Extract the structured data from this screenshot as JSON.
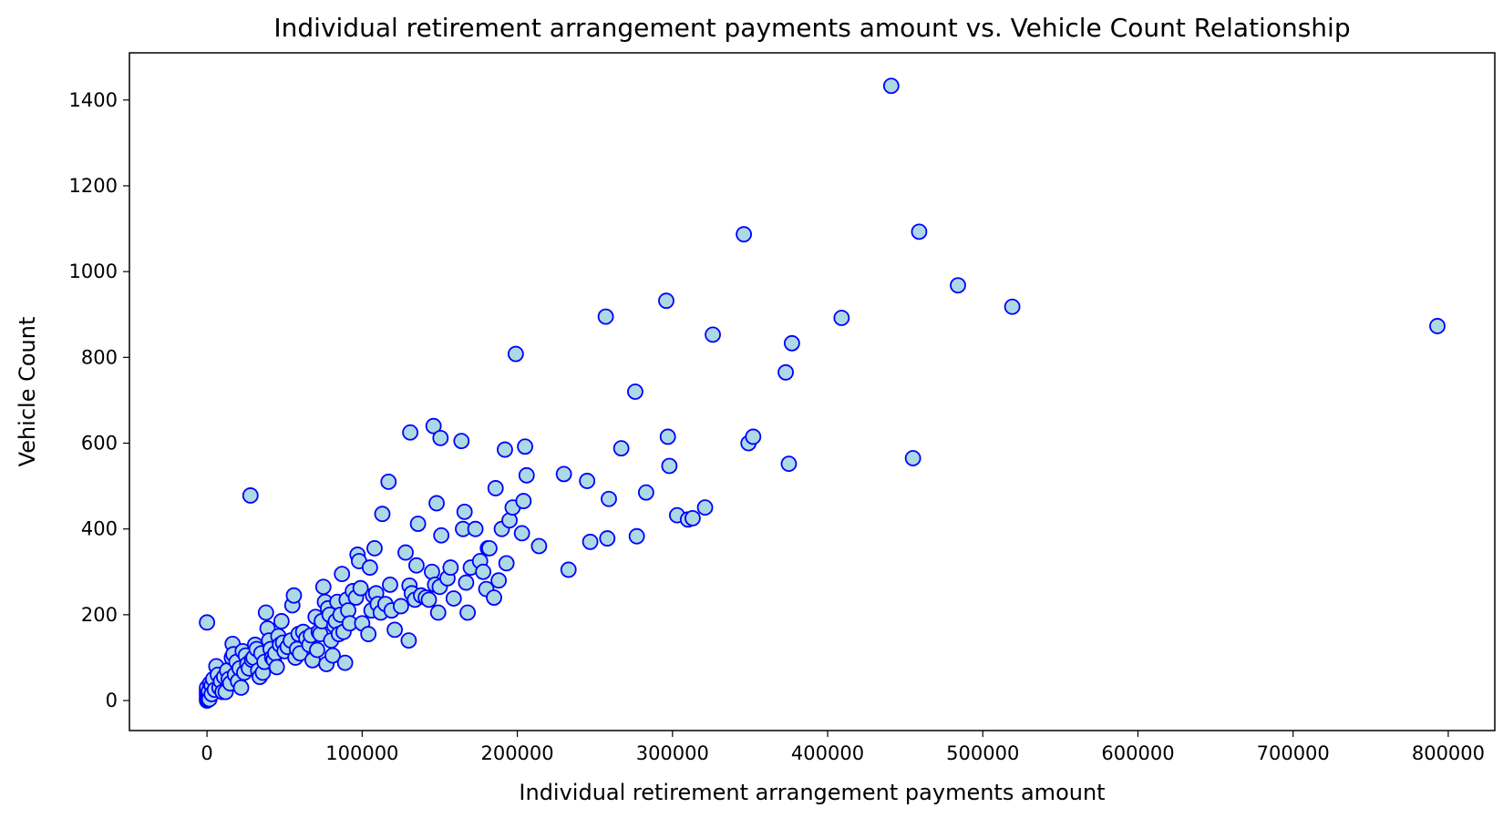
{
  "chart_data": {
    "type": "scatter",
    "title": "Individual retirement arrangement payments amount vs. Vehicle Count Relationship",
    "xlabel": "Individual retirement arrangement payments amount",
    "ylabel": "Vehicle Count",
    "xlim": [
      -50000,
      830000
    ],
    "ylim": [
      -70,
      1510
    ],
    "xticks": [
      0,
      100000,
      200000,
      300000,
      400000,
      500000,
      600000,
      700000,
      800000
    ],
    "yticks": [
      0,
      200,
      400,
      600,
      800,
      1000,
      1200,
      1400
    ],
    "grid": false,
    "legend": "none",
    "marker_fill": "#add8e6",
    "marker_edge": "#0000ff",
    "points": [
      [
        0,
        0
      ],
      [
        0,
        5
      ],
      [
        0,
        10
      ],
      [
        0,
        15
      ],
      [
        0,
        20
      ],
      [
        0,
        25
      ],
      [
        0,
        30
      ],
      [
        500,
        2
      ],
      [
        800,
        12
      ],
      [
        1000,
        8
      ],
      [
        1200,
        22
      ],
      [
        1500,
        3
      ],
      [
        0,
        182
      ],
      [
        2000,
        40
      ],
      [
        3000,
        35
      ],
      [
        3000,
        15
      ],
      [
        4000,
        50
      ],
      [
        5000,
        25
      ],
      [
        6000,
        80
      ],
      [
        7000,
        60
      ],
      [
        8000,
        30
      ],
      [
        9000,
        45
      ],
      [
        10000,
        20
      ],
      [
        11000,
        55
      ],
      [
        12000,
        20
      ],
      [
        13000,
        70
      ],
      [
        14000,
        50
      ],
      [
        15000,
        40
      ],
      [
        16000,
        100
      ],
      [
        16500,
        132
      ],
      [
        17000,
        108
      ],
      [
        18000,
        60
      ],
      [
        19000,
        90
      ],
      [
        20000,
        45
      ],
      [
        21000,
        75
      ],
      [
        22000,
        30
      ],
      [
        23000,
        115
      ],
      [
        24000,
        65
      ],
      [
        25000,
        105
      ],
      [
        26000,
        85
      ],
      [
        27000,
        75
      ],
      [
        28000,
        478
      ],
      [
        29000,
        95
      ],
      [
        30000,
        100
      ],
      [
        31000,
        130
      ],
      [
        32000,
        120
      ],
      [
        33000,
        70
      ],
      [
        34000,
        55
      ],
      [
        35000,
        110
      ],
      [
        36000,
        65
      ],
      [
        37000,
        90
      ],
      [
        38000,
        205
      ],
      [
        39000,
        168
      ],
      [
        40000,
        140
      ],
      [
        41000,
        120
      ],
      [
        42000,
        100
      ],
      [
        43000,
        95
      ],
      [
        44000,
        110
      ],
      [
        45000,
        78
      ],
      [
        46000,
        150
      ],
      [
        47000,
        130
      ],
      [
        48000,
        185
      ],
      [
        49000,
        135
      ],
      [
        50000,
        115
      ],
      [
        52000,
        125
      ],
      [
        54000,
        140
      ],
      [
        55000,
        222
      ],
      [
        56000,
        245
      ],
      [
        57000,
        100
      ],
      [
        58000,
        120
      ],
      [
        59000,
        155
      ],
      [
        60000,
        110
      ],
      [
        62000,
        160
      ],
      [
        64000,
        145
      ],
      [
        66000,
        130
      ],
      [
        67000,
        152
      ],
      [
        68000,
        94
      ],
      [
        70000,
        195
      ],
      [
        71000,
        118
      ],
      [
        72000,
        160
      ],
      [
        73000,
        155
      ],
      [
        74000,
        185
      ],
      [
        75000,
        265
      ],
      [
        76000,
        230
      ],
      [
        77000,
        85
      ],
      [
        78000,
        215
      ],
      [
        79000,
        200
      ],
      [
        80000,
        140
      ],
      [
        81000,
        105
      ],
      [
        82000,
        175
      ],
      [
        83000,
        185
      ],
      [
        84000,
        230
      ],
      [
        85000,
        155
      ],
      [
        86000,
        200
      ],
      [
        87000,
        295
      ],
      [
        88000,
        160
      ],
      [
        89000,
        88
      ],
      [
        90000,
        235
      ],
      [
        91000,
        210
      ],
      [
        92000,
        180
      ],
      [
        94000,
        255
      ],
      [
        96000,
        240
      ],
      [
        97000,
        340
      ],
      [
        98000,
        325
      ],
      [
        99000,
        262
      ],
      [
        100000,
        180
      ],
      [
        104000,
        155
      ],
      [
        105000,
        310
      ],
      [
        106000,
        210
      ],
      [
        107000,
        245
      ],
      [
        108000,
        355
      ],
      [
        109000,
        250
      ],
      [
        110000,
        225
      ],
      [
        112000,
        205
      ],
      [
        113000,
        435
      ],
      [
        115000,
        225
      ],
      [
        117000,
        510
      ],
      [
        118000,
        270
      ],
      [
        119000,
        210
      ],
      [
        121000,
        165
      ],
      [
        125000,
        220
      ],
      [
        128000,
        345
      ],
      [
        130000,
        140
      ],
      [
        130500,
        268
      ],
      [
        131000,
        625
      ],
      [
        132000,
        250
      ],
      [
        134000,
        235
      ],
      [
        135000,
        315
      ],
      [
        136000,
        412
      ],
      [
        138000,
        245
      ],
      [
        141000,
        240
      ],
      [
        143000,
        235
      ],
      [
        145000,
        300
      ],
      [
        146000,
        640
      ],
      [
        147000,
        270
      ],
      [
        148000,
        460
      ],
      [
        149000,
        205
      ],
      [
        150000,
        265
      ],
      [
        150500,
        612
      ],
      [
        151000,
        385
      ],
      [
        155000,
        285
      ],
      [
        157000,
        310
      ],
      [
        159000,
        238
      ],
      [
        164000,
        605
      ],
      [
        165000,
        400
      ],
      [
        166000,
        440
      ],
      [
        167000,
        275
      ],
      [
        168000,
        205
      ],
      [
        170000,
        310
      ],
      [
        173000,
        400
      ],
      [
        176000,
        325
      ],
      [
        178000,
        300
      ],
      [
        180000,
        260
      ],
      [
        181000,
        355
      ],
      [
        182000,
        355
      ],
      [
        185000,
        240
      ],
      [
        186000,
        495
      ],
      [
        188000,
        280
      ],
      [
        190000,
        400
      ],
      [
        192000,
        585
      ],
      [
        193000,
        320
      ],
      [
        195000,
        420
      ],
      [
        197000,
        450
      ],
      [
        199000,
        808
      ],
      [
        203000,
        390
      ],
      [
        204000,
        465
      ],
      [
        205000,
        592
      ],
      [
        206000,
        525
      ],
      [
        214000,
        360
      ],
      [
        230000,
        528
      ],
      [
        233000,
        305
      ],
      [
        245000,
        512
      ],
      [
        247000,
        370
      ],
      [
        257000,
        895
      ],
      [
        258000,
        378
      ],
      [
        259000,
        470
      ],
      [
        267000,
        588
      ],
      [
        276000,
        720
      ],
      [
        277000,
        383
      ],
      [
        283000,
        485
      ],
      [
        296000,
        932
      ],
      [
        297000,
        615
      ],
      [
        298000,
        547
      ],
      [
        303000,
        432
      ],
      [
        310000,
        422
      ],
      [
        313000,
        425
      ],
      [
        321000,
        450
      ],
      [
        326000,
        853
      ],
      [
        346000,
        1087
      ],
      [
        349000,
        600
      ],
      [
        352000,
        615
      ],
      [
        373000,
        765
      ],
      [
        375000,
        552
      ],
      [
        377000,
        833
      ],
      [
        409000,
        892
      ],
      [
        441000,
        1433
      ],
      [
        455000,
        565
      ],
      [
        459000,
        1093
      ],
      [
        484000,
        968
      ],
      [
        519000,
        918
      ],
      [
        793000,
        873
      ]
    ]
  }
}
